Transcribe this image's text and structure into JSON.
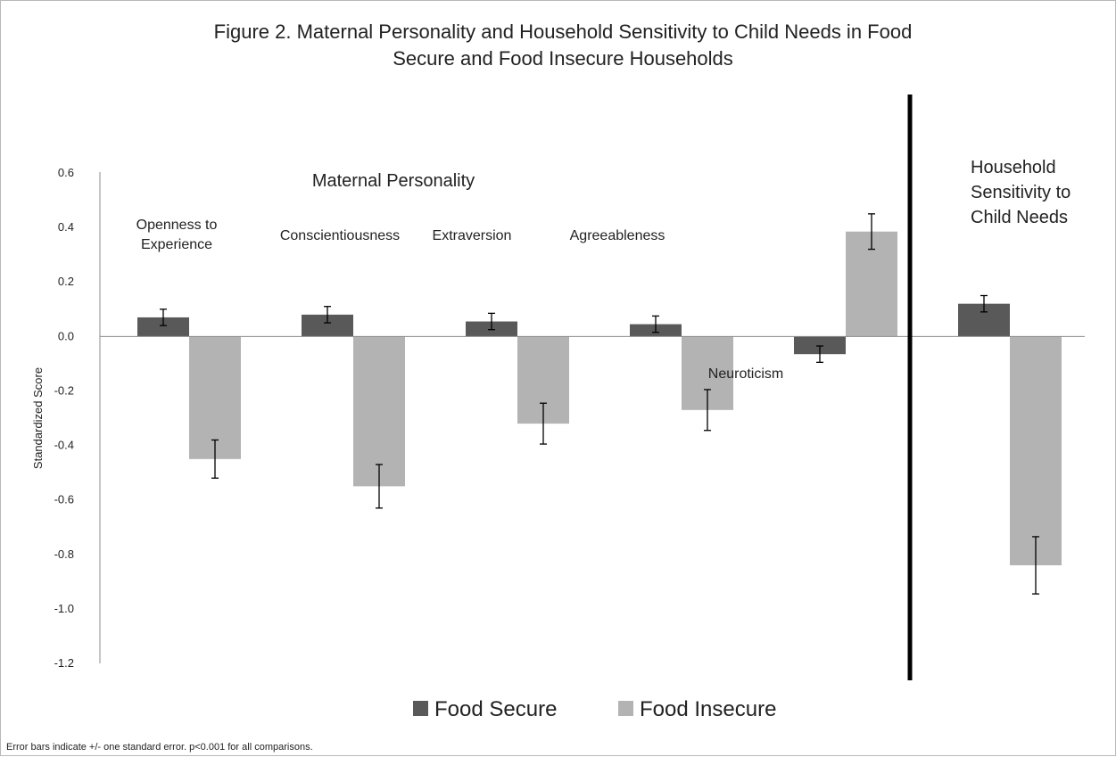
{
  "chart_data": {
    "type": "bar",
    "title": "Figure 2. Maternal Personality and Household Sensitivity to Child Needs in Food Secure and Food Insecure Households",
    "title_lines": [
      "Figure 2. Maternal Personality and Household Sensitivity to Child Needs in Food",
      "Secure and Food Insecure Households"
    ],
    "ylabel": "Standardized Score",
    "ylim": [
      -1.2,
      0.6
    ],
    "yticks": [
      "0.6",
      "0.4",
      "0.2",
      "0.0",
      "-0.2",
      "-0.4",
      "-0.6",
      "-0.8",
      "-1.0",
      "-1.2"
    ],
    "ytick_values": [
      0.6,
      0.4,
      0.2,
      0.0,
      -0.2,
      -0.4,
      -0.6,
      -0.8,
      -1.0,
      -1.2
    ],
    "groups": [
      {
        "label": "Maternal Personality",
        "categories": [
          0,
          1,
          2,
          3,
          4
        ]
      },
      {
        "label_lines": [
          "Household",
          "Sensitivity to",
          "Child Needs"
        ],
        "categories": [
          5
        ]
      }
    ],
    "categories": [
      {
        "label_lines": [
          "Openness to",
          "Experience"
        ]
      },
      {
        "label_lines": [
          "Conscientiousness"
        ]
      },
      {
        "label_lines": [
          "Extraversion"
        ]
      },
      {
        "label_lines": [
          "Agreeableness"
        ]
      },
      {
        "label_lines": [
          "Neuroticism"
        ]
      },
      {
        "label_lines": []
      }
    ],
    "series": [
      {
        "name": "Food Secure",
        "color": "#595959",
        "values": [
          0.07,
          0.08,
          0.055,
          0.045,
          -0.065,
          0.12
        ],
        "error": [
          0.03,
          0.03,
          0.03,
          0.03,
          0.03,
          0.03
        ]
      },
      {
        "name": "Food Insecure",
        "color": "#b3b3b3",
        "values": [
          -0.45,
          -0.55,
          -0.32,
          -0.27,
          0.385,
          -0.84
        ],
        "error": [
          0.07,
          0.08,
          0.075,
          0.075,
          0.065,
          0.105
        ]
      }
    ],
    "grid": false,
    "legend_position": "bottom",
    "separator_after_category": 4,
    "footnote": "Error bars indicate +/- one standard error. p<0.001 for all comparisons."
  }
}
